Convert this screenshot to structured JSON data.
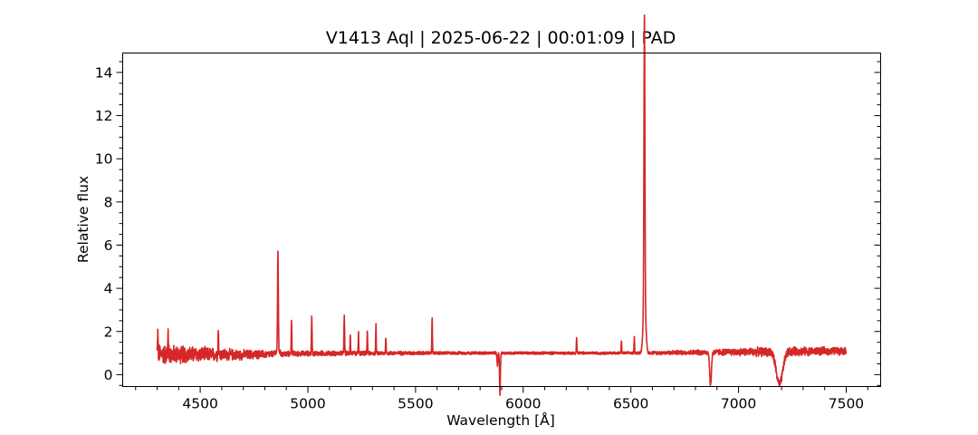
{
  "chart_data": {
    "type": "line",
    "title": "V1413 Aql | 2025-06-22 | 00:01:09 | PAD",
    "xlabel": "Wavelength [Å]",
    "ylabel": "Relative flux",
    "xlim": [
      4140,
      7660
    ],
    "ylim": [
      -0.55,
      14.9
    ],
    "x_ticks": [
      4500,
      5000,
      5500,
      6000,
      6500,
      7000,
      7500
    ],
    "x_minor_step": 100,
    "y_ticks": [
      0,
      2,
      4,
      6,
      8,
      10,
      12,
      14
    ],
    "y_minor_step": 0.5,
    "grid": false,
    "line_color": "#d62728",
    "series": [
      {
        "x_range": [
          4300,
          7500
        ],
        "continuum": [
          [
            4300,
            0.95
          ],
          [
            4700,
            0.92
          ],
          [
            5000,
            0.98
          ],
          [
            5500,
            1.0
          ],
          [
            6000,
            1.0
          ],
          [
            6500,
            1.0
          ],
          [
            7000,
            1.05
          ],
          [
            7500,
            1.1
          ]
        ],
        "noise": [
          [
            4300,
            0.55
          ],
          [
            4650,
            0.3
          ],
          [
            4900,
            0.15
          ],
          [
            5700,
            0.08
          ],
          [
            6500,
            0.07
          ],
          [
            6850,
            0.15
          ],
          [
            7150,
            0.25
          ],
          [
            7500,
            0.2
          ]
        ],
        "features": [
          {
            "center": 6563,
            "peak": 14.25,
            "width": 2.2
          },
          {
            "center": 6563,
            "peak": 3.5,
            "width": 6.0
          },
          {
            "center": 4861,
            "peak": 5.45,
            "width": 1.8
          },
          {
            "center": 4861,
            "peak": 1.2,
            "width": 6.0
          },
          {
            "center": 4924,
            "peak": 2.4,
            "width": 1.5
          },
          {
            "center": 5018,
            "peak": 2.65,
            "width": 1.5
          },
          {
            "center": 5169,
            "peak": 2.8,
            "width": 1.5
          },
          {
            "center": 5197,
            "peak": 1.9,
            "width": 1.2
          },
          {
            "center": 5235,
            "peak": 2.0,
            "width": 1.2
          },
          {
            "center": 5276,
            "peak": 2.05,
            "width": 1.2
          },
          {
            "center": 5316,
            "peak": 2.3,
            "width": 1.2
          },
          {
            "center": 5362,
            "peak": 1.75,
            "width": 1.2
          },
          {
            "center": 5577,
            "peak": 2.65,
            "width": 1.3
          },
          {
            "center": 4584,
            "peak": 2.15,
            "width": 1.3
          },
          {
            "center": 4351,
            "peak": 2.0,
            "width": 1.3
          },
          {
            "center": 4303,
            "peak": 1.9,
            "width": 1.3
          },
          {
            "center": 6248,
            "peak": 1.7,
            "width": 1.3
          },
          {
            "center": 6456,
            "peak": 1.6,
            "width": 1.3
          },
          {
            "center": 6516,
            "peak": 1.75,
            "width": 1.3
          },
          {
            "center": 5892,
            "peak": -0.9,
            "width": 2.0
          },
          {
            "center": 5880,
            "peak": 0.45,
            "width": 2.0
          },
          {
            "center": 6870,
            "peak": -0.5,
            "width": 4.0
          },
          {
            "center": 7190,
            "peak": -0.45,
            "width": 15.0
          }
        ]
      }
    ]
  }
}
